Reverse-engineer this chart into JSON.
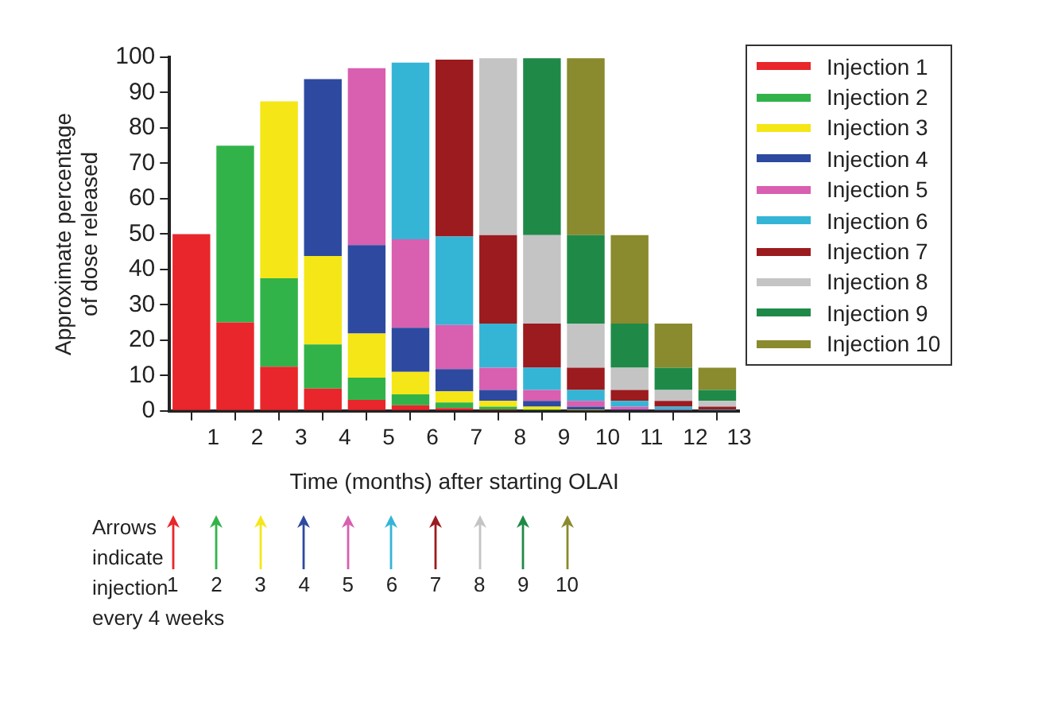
{
  "chart_data": {
    "type": "bar",
    "stacked": true,
    "xlabel": "Time (months) after starting OLAI",
    "ylabel": "Approximate percentage\nof dose released",
    "x": [
      0.5,
      1.5,
      2.5,
      3.5,
      4.5,
      5.5,
      6.5,
      7.5,
      8.5,
      9.5,
      10.5,
      11.5,
      12.5
    ],
    "xlim": [
      0,
      13
    ],
    "xticks": [
      1,
      2,
      3,
      4,
      5,
      6,
      7,
      8,
      9,
      10,
      11,
      12,
      13
    ],
    "ylim": [
      0,
      100
    ],
    "yticks": [
      0,
      10,
      20,
      30,
      40,
      50,
      60,
      70,
      80,
      90,
      100
    ],
    "grid": false,
    "legend": "top right",
    "series": [
      {
        "name": "Injection 1",
        "color": "#e8262b",
        "values": [
          50,
          25,
          12.5,
          6.3,
          3.1,
          1.6,
          0.8,
          0.4,
          null,
          null,
          null,
          null,
          null
        ]
      },
      {
        "name": "Injection 2",
        "color": "#32b34a",
        "values": [
          null,
          50,
          25,
          12.5,
          6.3,
          3.1,
          1.6,
          0.8,
          0.4,
          null,
          null,
          null,
          null
        ]
      },
      {
        "name": "Injection 3",
        "color": "#f5e617",
        "values": [
          null,
          null,
          50,
          25,
          12.5,
          6.3,
          3.1,
          1.6,
          0.8,
          0.4,
          null,
          null,
          null
        ]
      },
      {
        "name": "Injection 4",
        "color": "#2e4aa0",
        "values": [
          null,
          null,
          null,
          50,
          25,
          12.5,
          6.3,
          3.1,
          1.6,
          0.8,
          0.4,
          null,
          null
        ]
      },
      {
        "name": "Injection 5",
        "color": "#d95fb0",
        "values": [
          null,
          null,
          null,
          null,
          50,
          25,
          12.5,
          6.3,
          3.1,
          1.6,
          0.8,
          0.4,
          null
        ]
      },
      {
        "name": "Injection 6",
        "color": "#35b5d6",
        "values": [
          null,
          null,
          null,
          null,
          null,
          50,
          25,
          12.5,
          6.3,
          3.1,
          1.6,
          0.8,
          0.4
        ]
      },
      {
        "name": "Injection 7",
        "color": "#9b1b1f",
        "values": [
          null,
          null,
          null,
          null,
          null,
          null,
          50,
          25,
          12.5,
          6.3,
          3.1,
          1.6,
          0.8
        ]
      },
      {
        "name": "Injection 8",
        "color": "#c4c4c4",
        "values": [
          null,
          null,
          null,
          null,
          null,
          null,
          null,
          50,
          25,
          12.5,
          6.3,
          3.1,
          1.6
        ]
      },
      {
        "name": "Injection 9",
        "color": "#1f8a48",
        "values": [
          null,
          null,
          null,
          null,
          null,
          null,
          null,
          null,
          50,
          25,
          12.5,
          6.3,
          3.1
        ]
      },
      {
        "name": "Injection 10",
        "color": "#8a8a2e",
        "values": [
          null,
          null,
          null,
          null,
          null,
          null,
          null,
          null,
          null,
          50,
          25,
          12.5,
          6.3
        ]
      }
    ],
    "annotations": [
      "Arrows\nindicate\ninjection\nevery 4 weeks",
      "1",
      "2",
      "3",
      "4",
      "5",
      "6",
      "7",
      "8",
      "9",
      "10"
    ]
  }
}
